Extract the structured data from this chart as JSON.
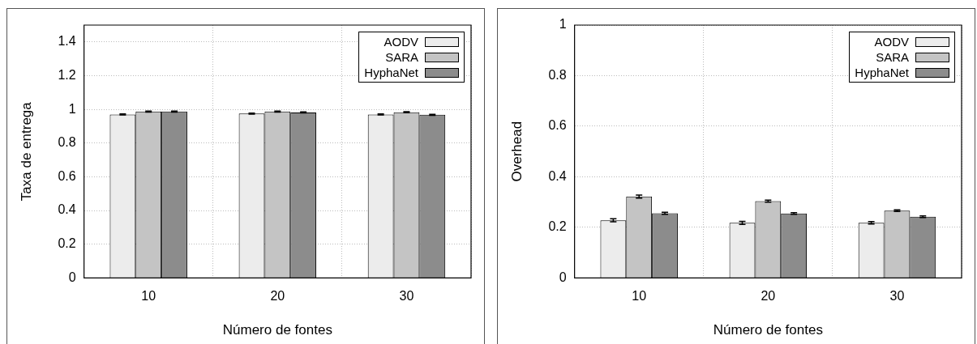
{
  "chart_data": [
    {
      "type": "bar",
      "xlabel": "Número de fontes",
      "ylabel": "Taxa de entrega",
      "categories": [
        "10",
        "20",
        "30"
      ],
      "series": [
        {
          "name": "AODV",
          "color": "#ececec",
          "values": [
            0.97,
            0.975,
            0.97
          ],
          "errors": [
            0.003,
            0.003,
            0.003
          ]
        },
        {
          "name": "SARA",
          "color": "#c4c4c4",
          "values": [
            0.987,
            0.987,
            0.983
          ],
          "errors": [
            0.003,
            0.003,
            0.003
          ]
        },
        {
          "name": "HyphaNet",
          "color": "#8c8c8c",
          "values": [
            0.987,
            0.982,
            0.968
          ],
          "errors": [
            0.003,
            0.003,
            0.003
          ]
        }
      ],
      "ylim": [
        0,
        1.5
      ],
      "yticks": [
        0,
        0.2,
        0.4,
        0.6,
        0.8,
        1,
        1.2,
        1.4
      ],
      "grid": true,
      "legend": "top right"
    },
    {
      "type": "bar",
      "xlabel": "Número de fontes",
      "ylabel": "Overhead",
      "categories": [
        "10",
        "20",
        "30"
      ],
      "series": [
        {
          "name": "AODV",
          "color": "#ececec",
          "values": [
            0.228,
            0.218,
            0.218
          ],
          "errors": [
            0.006,
            0.006,
            0.005
          ]
        },
        {
          "name": "SARA",
          "color": "#c4c4c4",
          "values": [
            0.322,
            0.304,
            0.266
          ],
          "errors": [
            0.006,
            0.004,
            0.003
          ]
        },
        {
          "name": "HyphaNet",
          "color": "#8c8c8c",
          "values": [
            0.256,
            0.255,
            0.242
          ],
          "errors": [
            0.004,
            0.003,
            0.003
          ]
        }
      ],
      "ylim": [
        0,
        1
      ],
      "yticks": [
        0,
        0.2,
        0.4,
        0.6,
        0.8,
        1
      ],
      "grid": true,
      "legend": "top right"
    }
  ]
}
